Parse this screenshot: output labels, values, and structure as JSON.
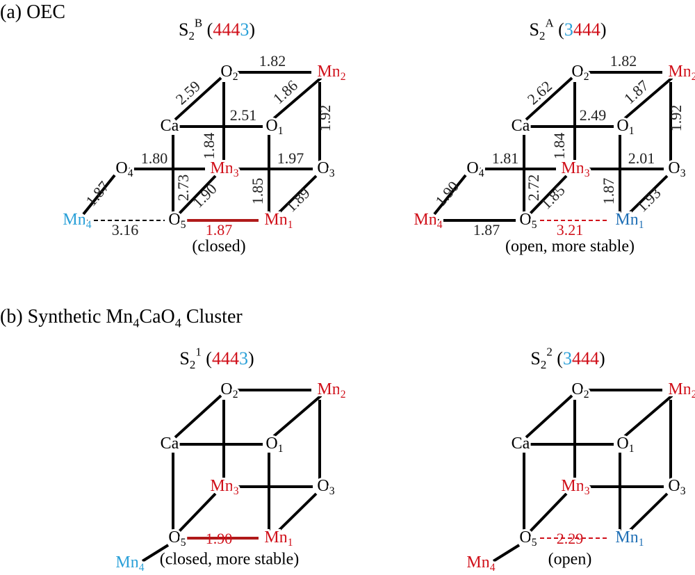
{
  "sections": [
    {
      "heading": [
        {
          "text": "(a) OEC"
        }
      ],
      "panels": [
        {
          "title": [
            {
              "text": "S"
            },
            {
              "text": "2",
              "sub": true
            },
            {
              "text": "B",
              "sup": true
            },
            {
              "text": " ("
            },
            {
              "text": "444",
              "color": "#d0101a"
            },
            {
              "text": "3",
              "color": "#2aa0d8"
            },
            {
              "text": ")"
            }
          ],
          "atoms": [
            {
              "symbol": "O",
              "sub": "2",
              "color": "#000000"
            },
            {
              "symbol": "Mn",
              "sub": "2",
              "color": "#d0101a"
            },
            {
              "symbol": "Ca",
              "color": "#000000"
            },
            {
              "symbol": "O",
              "sub": "1",
              "color": "#000000"
            },
            {
              "symbol": "O",
              "sub": "4",
              "color": "#000000"
            },
            {
              "symbol": "Mn",
              "sub": "3",
              "color": "#d0101a"
            },
            {
              "symbol": "O",
              "sub": "3",
              "color": "#000000"
            },
            {
              "symbol": "Mn",
              "sub": "4",
              "color": "#2aa0d8"
            },
            {
              "symbol": "O",
              "sub": "5",
              "color": "#000000"
            },
            {
              "symbol": "Mn",
              "sub": "1",
              "color": "#d0101a"
            }
          ],
          "bond_labels": [
            {
              "text": "1.82",
              "color": "#222222"
            },
            {
              "text": "2.59",
              "color": "#222222"
            },
            {
              "text": "1.86",
              "color": "#222222"
            },
            {
              "text": "2.51",
              "color": "#222222"
            },
            {
              "text": "1.92",
              "color": "#222222"
            },
            {
              "text": "1.84",
              "color": "#222222"
            },
            {
              "text": "1.80",
              "color": "#222222"
            },
            {
              "text": "1.97",
              "color": "#222222"
            },
            {
              "text": "1.87",
              "color": "#222222"
            },
            {
              "text": "2.73",
              "color": "#222222"
            },
            {
              "text": "1.90",
              "color": "#222222"
            },
            {
              "text": "1.85",
              "color": "#222222"
            },
            {
              "text": "1.89",
              "color": "#222222"
            },
            {
              "text": "3.16",
              "color": "#222222"
            },
            {
              "text": "1.87",
              "color": "#d0101a"
            }
          ],
          "caption": "(closed)"
        },
        {
          "title": [
            {
              "text": "S"
            },
            {
              "text": "2",
              "sub": true
            },
            {
              "text": "A",
              "sup": true
            },
            {
              "text": " ("
            },
            {
              "text": "3",
              "color": "#2aa0d8"
            },
            {
              "text": "444",
              "color": "#d0101a"
            },
            {
              "text": ")"
            }
          ],
          "atoms": [
            {
              "symbol": "O",
              "sub": "2",
              "color": "#000000"
            },
            {
              "symbol": "Mn",
              "sub": "2",
              "color": "#d0101a"
            },
            {
              "symbol": "Ca",
              "color": "#000000"
            },
            {
              "symbol": "O",
              "sub": "1",
              "color": "#000000"
            },
            {
              "symbol": "O",
              "sub": "4",
              "color": "#000000"
            },
            {
              "symbol": "Mn",
              "sub": "3",
              "color": "#d0101a"
            },
            {
              "symbol": "O",
              "sub": "3",
              "color": "#000000"
            },
            {
              "symbol": "Mn",
              "sub": "4",
              "color": "#d0101a"
            },
            {
              "symbol": "O",
              "sub": "5",
              "color": "#000000"
            },
            {
              "symbol": "Mn",
              "sub": "1",
              "color": "#1f6fb5"
            }
          ],
          "bond_labels": [
            {
              "text": "1.82",
              "color": "#222222"
            },
            {
              "text": "2.62",
              "color": "#222222"
            },
            {
              "text": "1.87",
              "color": "#222222"
            },
            {
              "text": "2.49",
              "color": "#222222"
            },
            {
              "text": "1.92",
              "color": "#222222"
            },
            {
              "text": "1.84",
              "color": "#222222"
            },
            {
              "text": "1.81",
              "color": "#222222"
            },
            {
              "text": "2.01",
              "color": "#222222"
            },
            {
              "text": "1.90",
              "color": "#222222"
            },
            {
              "text": "2.72",
              "color": "#222222"
            },
            {
              "text": "1.85",
              "color": "#222222"
            },
            {
              "text": "1.87",
              "color": "#222222"
            },
            {
              "text": "1.93",
              "color": "#222222"
            },
            {
              "text": "1.87",
              "color": "#222222"
            },
            {
              "text": "3.21",
              "color": "#d0101a"
            }
          ],
          "caption": "(open, more stable)"
        }
      ]
    },
    {
      "heading": [
        {
          "text": "(b) Synthetic Mn"
        },
        {
          "text": "4",
          "sub": true
        },
        {
          "text": "CaO"
        },
        {
          "text": "4",
          "sub": true
        },
        {
          "text": " Cluster"
        }
      ],
      "panels": [
        {
          "title": [
            {
              "text": "S"
            },
            {
              "text": "2",
              "sub": true
            },
            {
              "text": "1",
              "sup": true
            },
            {
              "text": " ("
            },
            {
              "text": "444",
              "color": "#d0101a"
            },
            {
              "text": "3",
              "color": "#2aa0d8"
            },
            {
              "text": ")"
            }
          ],
          "atoms": [
            {
              "symbol": "O",
              "sub": "2",
              "color": "#000000"
            },
            {
              "symbol": "Mn",
              "sub": "2",
              "color": "#d0101a"
            },
            {
              "symbol": "Ca",
              "color": "#000000"
            },
            {
              "symbol": "O",
              "sub": "1",
              "color": "#000000"
            },
            {
              "symbol": "Mn",
              "sub": "3",
              "color": "#d0101a"
            },
            {
              "symbol": "O",
              "sub": "3",
              "color": "#000000"
            },
            {
              "symbol": "Mn",
              "sub": "4",
              "color": "#2aa0d8"
            },
            {
              "symbol": "O",
              "sub": "5",
              "color": "#000000"
            },
            {
              "symbol": "Mn",
              "sub": "1",
              "color": "#d0101a"
            }
          ],
          "bond_labels": [
            {
              "text": "1.90",
              "color": "#d0101a"
            }
          ],
          "caption": "(closed, more stable)"
        },
        {
          "title": [
            {
              "text": "S"
            },
            {
              "text": "2",
              "sub": true
            },
            {
              "text": "2",
              "sup": true
            },
            {
              "text": " ("
            },
            {
              "text": "3",
              "color": "#2aa0d8"
            },
            {
              "text": "444",
              "color": "#d0101a"
            },
            {
              "text": ")"
            }
          ],
          "atoms": [
            {
              "symbol": "O",
              "sub": "2",
              "color": "#000000"
            },
            {
              "symbol": "Mn",
              "sub": "2",
              "color": "#d0101a"
            },
            {
              "symbol": "Ca",
              "color": "#000000"
            },
            {
              "symbol": "O",
              "sub": "1",
              "color": "#000000"
            },
            {
              "symbol": "Mn",
              "sub": "3",
              "color": "#d0101a"
            },
            {
              "symbol": "O",
              "sub": "3",
              "color": "#000000"
            },
            {
              "symbol": "Mn",
              "sub": "4",
              "color": "#d0101a"
            },
            {
              "symbol": "O",
              "sub": "5",
              "color": "#000000"
            },
            {
              "symbol": "Mn",
              "sub": "1",
              "color": "#1f6fb5"
            }
          ],
          "bond_labels": [
            {
              "text": "2.29",
              "color": "#d0101a"
            }
          ],
          "caption": "(open)"
        }
      ]
    }
  ]
}
